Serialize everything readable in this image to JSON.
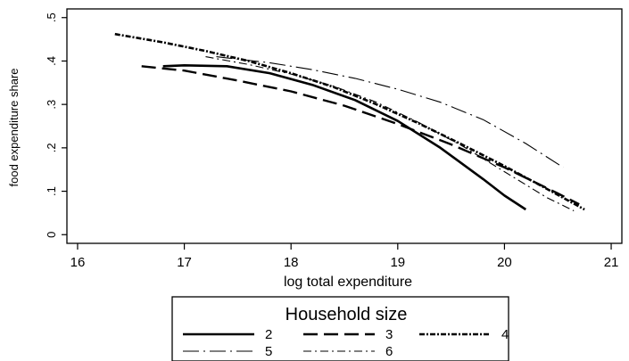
{
  "chart_data": {
    "type": "line",
    "title": "",
    "xlabel": "log total expenditure",
    "ylabel": "food expenditure share",
    "xlim": [
      15.9,
      21.1
    ],
    "ylim": [
      -0.02,
      0.52
    ],
    "xticks": [
      16,
      17,
      18,
      19,
      20,
      21
    ],
    "yticks": [
      0,
      0.1,
      0.2,
      0.3,
      0.4,
      0.5
    ],
    "xtick_labels": [
      "16",
      "17",
      "18",
      "19",
      "20",
      "21"
    ],
    "ytick_labels": [
      "0",
      ".1",
      ".2",
      ".3",
      ".4",
      ".5"
    ],
    "grid": false,
    "legend": {
      "title": "Household size",
      "placement": "bottom"
    },
    "series": [
      {
        "name": "2",
        "dash": "solid",
        "x": [
          16.8,
          17.0,
          17.4,
          17.8,
          18.2,
          18.6,
          19.0,
          19.4,
          19.8,
          20.0,
          20.2
        ],
        "y": [
          0.388,
          0.39,
          0.388,
          0.372,
          0.345,
          0.31,
          0.262,
          0.2,
          0.128,
          0.09,
          0.058
        ]
      },
      {
        "name": "3",
        "dash": "long-dash",
        "x": [
          16.6,
          17.0,
          17.5,
          18.0,
          18.5,
          19.0,
          19.5,
          20.0,
          20.5,
          20.7
        ],
        "y": [
          0.388,
          0.378,
          0.355,
          0.33,
          0.297,
          0.255,
          0.208,
          0.155,
          0.095,
          0.07
        ]
      },
      {
        "name": "4",
        "dash": "dash-dot-dense",
        "x": [
          16.35,
          16.8,
          17.2,
          17.6,
          18.0,
          18.4,
          18.8,
          19.2,
          19.6,
          20.0,
          20.4,
          20.75
        ],
        "y": [
          0.462,
          0.443,
          0.423,
          0.4,
          0.372,
          0.34,
          0.3,
          0.256,
          0.208,
          0.158,
          0.105,
          0.058
        ]
      },
      {
        "name": "5",
        "dash": "long-dash-dot",
        "x": [
          17.3,
          17.8,
          18.2,
          18.6,
          19.0,
          19.4,
          19.8,
          20.2,
          20.55
        ],
        "y": [
          0.41,
          0.396,
          0.38,
          0.36,
          0.335,
          0.305,
          0.265,
          0.21,
          0.155
        ]
      },
      {
        "name": "6",
        "dash": "dash-dot",
        "x": [
          17.2,
          17.6,
          18.0,
          18.4,
          18.8,
          19.2,
          19.6,
          20.0,
          20.4,
          20.65
        ],
        "y": [
          0.41,
          0.392,
          0.37,
          0.342,
          0.305,
          0.258,
          0.205,
          0.145,
          0.085,
          0.055
        ]
      }
    ]
  }
}
